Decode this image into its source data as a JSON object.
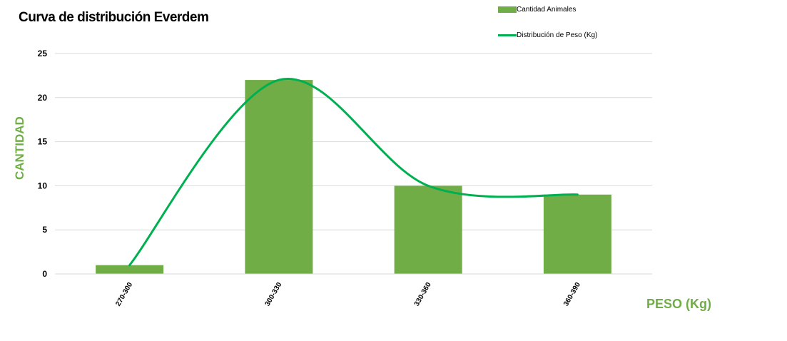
{
  "chart_data": {
    "type": "bar",
    "title": "Curva de distribución Everdem",
    "xlabel": "PESO (Kg)",
    "ylabel": "CANTIDAD",
    "categories": [
      "270-300",
      "300-330",
      "330-360",
      "360-390"
    ],
    "series": [
      {
        "name": "Cantidad Animales",
        "type": "bar",
        "values": [
          1,
          22,
          10,
          9
        ],
        "color": "#70ad47"
      },
      {
        "name": "Distribución de Peso (Kg)",
        "type": "line",
        "smooth": true,
        "values": [
          1,
          22,
          10,
          9
        ],
        "color": "#00b050"
      }
    ],
    "ylim": [
      0,
      25
    ],
    "yticks": [
      "0",
      "5",
      "10",
      "15",
      "20",
      "25"
    ],
    "grid": true,
    "legend": "top-right"
  }
}
